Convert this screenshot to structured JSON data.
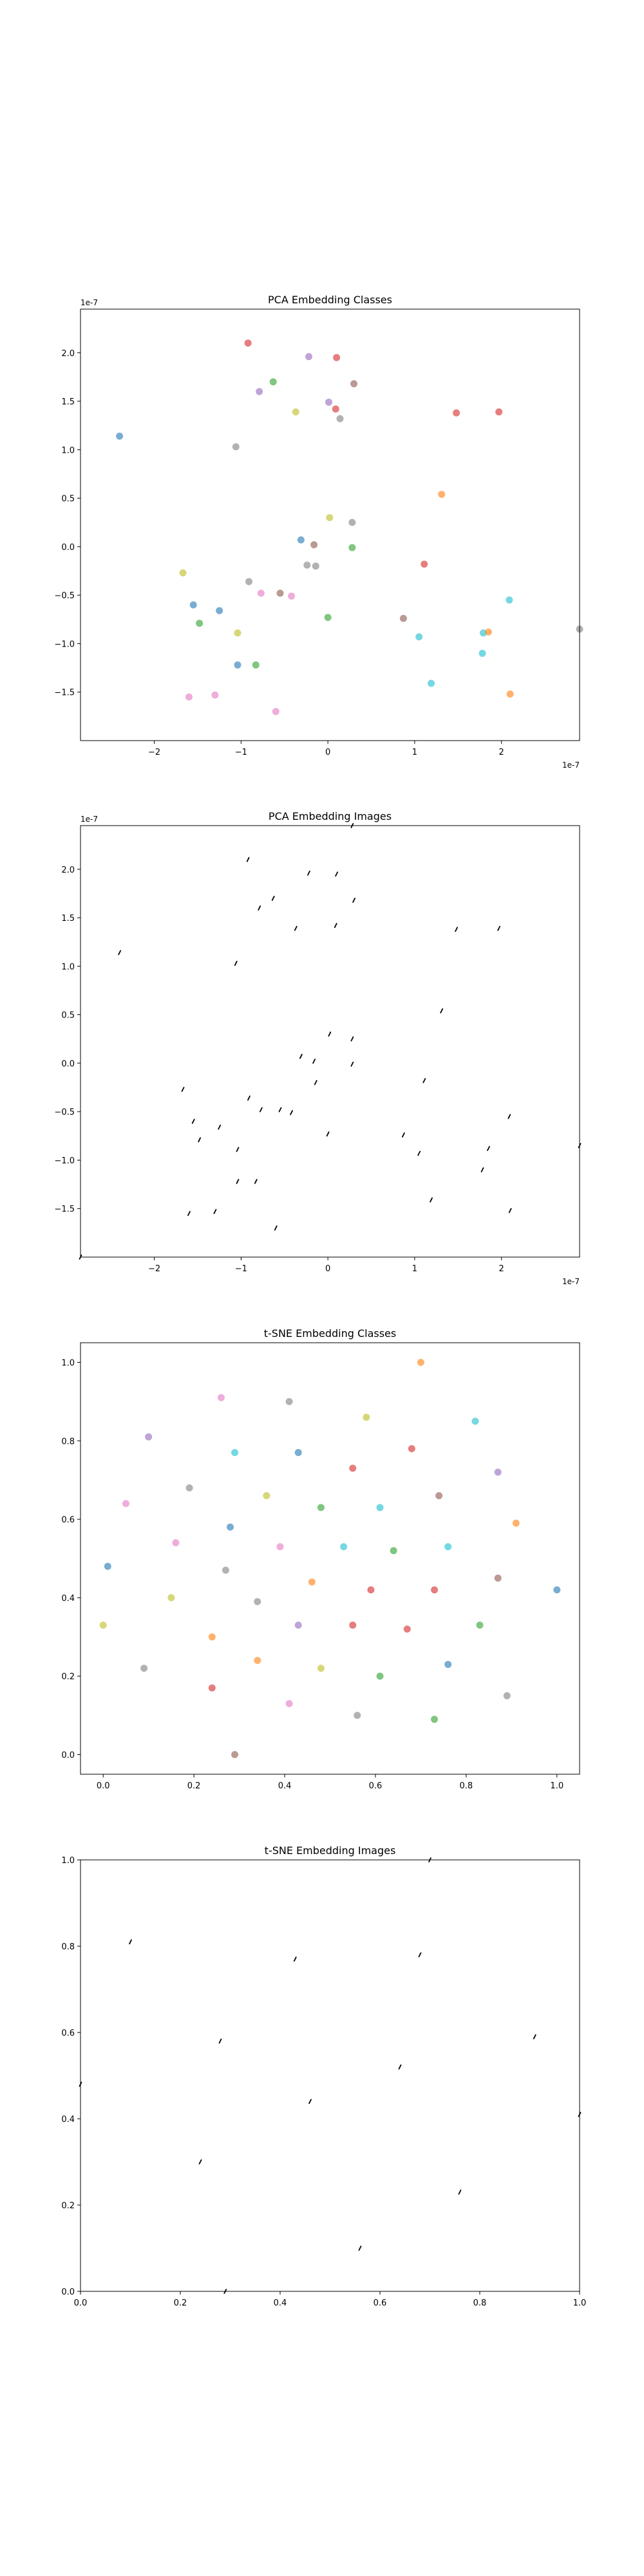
{
  "figure": {
    "background": "#ffffff"
  },
  "chart_data": [
    {
      "type": "scatter",
      "title": "PCA Embedding Classes",
      "xlabel": "",
      "ylabel": "",
      "x_scale_label": "1e-7",
      "y_scale_label": "1e-7",
      "xlim": [
        -2.85,
        2.9
      ],
      "ylim": [
        -2.0,
        2.45
      ],
      "xticks": [
        -2,
        -1,
        0,
        1,
        2
      ],
      "yticks": [
        -1.5,
        -1.0,
        -0.5,
        0.0,
        0.5,
        1.0,
        1.5,
        2.0
      ],
      "xtick_labels": [
        "−2",
        "−1",
        "0",
        "1",
        "2"
      ],
      "ytick_labels": [
        "−1.5",
        "−1.0",
        "−0.5",
        "0.0",
        "0.5",
        "1.0",
        "1.5",
        "2.0"
      ],
      "grid": false,
      "points": [
        {
          "x": -0.92,
          "y": 2.1,
          "color": "#d62728"
        },
        {
          "x": -0.22,
          "y": 1.96,
          "color": "#9467bd"
        },
        {
          "x": 0.1,
          "y": 1.95,
          "color": "#d62728"
        },
        {
          "x": -0.63,
          "y": 1.7,
          "color": "#2ca02c"
        },
        {
          "x": 0.3,
          "y": 1.68,
          "color": "#8c564b"
        },
        {
          "x": -0.79,
          "y": 1.6,
          "color": "#9467bd"
        },
        {
          "x": 0.01,
          "y": 1.49,
          "color": "#9467bd"
        },
        {
          "x": 0.09,
          "y": 1.42,
          "color": "#d62728"
        },
        {
          "x": -0.37,
          "y": 1.39,
          "color": "#bcbd22"
        },
        {
          "x": 0.14,
          "y": 1.32,
          "color": "#7f7f7f"
        },
        {
          "x": 1.48,
          "y": 1.38,
          "color": "#d62728"
        },
        {
          "x": 1.97,
          "y": 1.39,
          "color": "#d62728"
        },
        {
          "x": -2.4,
          "y": 1.14,
          "color": "#1f77b4"
        },
        {
          "x": -1.06,
          "y": 1.03,
          "color": "#7f7f7f"
        },
        {
          "x": 1.31,
          "y": 0.54,
          "color": "#ff7f0e"
        },
        {
          "x": 0.02,
          "y": 0.3,
          "color": "#bcbd22"
        },
        {
          "x": 0.28,
          "y": 0.25,
          "color": "#7f7f7f"
        },
        {
          "x": -0.31,
          "y": 0.07,
          "color": "#1f77b4"
        },
        {
          "x": -0.16,
          "y": 0.02,
          "color": "#8c564b"
        },
        {
          "x": 0.28,
          "y": -0.01,
          "color": "#2ca02c"
        },
        {
          "x": -0.24,
          "y": -0.19,
          "color": "#7f7f7f"
        },
        {
          "x": -0.14,
          "y": -0.2,
          "color": "#7f7f7f"
        },
        {
          "x": 1.11,
          "y": -0.18,
          "color": "#d62728"
        },
        {
          "x": -1.67,
          "y": -0.27,
          "color": "#bcbd22"
        },
        {
          "x": -0.91,
          "y": -0.36,
          "color": "#7f7f7f"
        },
        {
          "x": -0.77,
          "y": -0.48,
          "color": "#e377c2"
        },
        {
          "x": -0.55,
          "y": -0.48,
          "color": "#8c564b"
        },
        {
          "x": -0.42,
          "y": -0.51,
          "color": "#e377c2"
        },
        {
          "x": 2.09,
          "y": -0.55,
          "color": "#17becf"
        },
        {
          "x": -1.55,
          "y": -0.6,
          "color": "#1f77b4"
        },
        {
          "x": -1.25,
          "y": -0.66,
          "color": "#1f77b4"
        },
        {
          "x": 0.0,
          "y": -0.73,
          "color": "#2ca02c"
        },
        {
          "x": 0.87,
          "y": -0.74,
          "color": "#8c564b"
        },
        {
          "x": -1.48,
          "y": -0.79,
          "color": "#2ca02c"
        },
        {
          "x": 2.9,
          "y": -0.85,
          "color": "#7f7f7f"
        },
        {
          "x": -1.04,
          "y": -0.89,
          "color": "#bcbd22"
        },
        {
          "x": 1.79,
          "y": -0.89,
          "color": "#17becf"
        },
        {
          "x": 1.85,
          "y": -0.88,
          "color": "#ff7f0e"
        },
        {
          "x": 1.05,
          "y": -0.93,
          "color": "#17becf"
        },
        {
          "x": 1.78,
          "y": -1.1,
          "color": "#17becf"
        },
        {
          "x": -1.04,
          "y": -1.22,
          "color": "#1f77b4"
        },
        {
          "x": -0.83,
          "y": -1.22,
          "color": "#2ca02c"
        },
        {
          "x": 1.19,
          "y": -1.41,
          "color": "#17becf"
        },
        {
          "x": 2.1,
          "y": -1.52,
          "color": "#ff7f0e"
        },
        {
          "x": -1.3,
          "y": -1.53,
          "color": "#e377c2"
        },
        {
          "x": -1.6,
          "y": -1.55,
          "color": "#e377c2"
        },
        {
          "x": -0.6,
          "y": -1.7,
          "color": "#e377c2"
        }
      ]
    },
    {
      "type": "scatter",
      "title": "PCA Embedding Images",
      "xlabel": "",
      "ylabel": "",
      "x_scale_label": "1e-7",
      "y_scale_label": "1e-7",
      "xlim": [
        -2.85,
        2.9
      ],
      "ylim": [
        -2.0,
        2.45
      ],
      "xticks": [
        -2,
        -1,
        0,
        1,
        2
      ],
      "yticks": [
        -1.5,
        -1.0,
        -0.5,
        0.0,
        0.5,
        1.0,
        1.5,
        2.0
      ],
      "xtick_labels": [
        "−2",
        "−1",
        "0",
        "1",
        "2"
      ],
      "ytick_labels": [
        "−1.5",
        "−1.0",
        "−0.5",
        "0.0",
        "0.5",
        "1.0",
        "1.5",
        "2.0"
      ],
      "grid": false,
      "marker": "small image thumbnails",
      "points": [
        {
          "x": 0.28,
          "y": 2.45
        },
        {
          "x": -0.92,
          "y": 2.1
        },
        {
          "x": -0.22,
          "y": 1.96
        },
        {
          "x": 0.1,
          "y": 1.95
        },
        {
          "x": -0.79,
          "y": 1.6
        },
        {
          "x": -0.63,
          "y": 1.7
        },
        {
          "x": 0.3,
          "y": 1.68
        },
        {
          "x": -0.37,
          "y": 1.39
        },
        {
          "x": 0.09,
          "y": 1.42
        },
        {
          "x": 1.48,
          "y": 1.38
        },
        {
          "x": 1.97,
          "y": 1.39
        },
        {
          "x": -2.4,
          "y": 1.14
        },
        {
          "x": -1.06,
          "y": 1.03
        },
        {
          "x": 1.31,
          "y": 0.54
        },
        {
          "x": 0.02,
          "y": 0.3
        },
        {
          "x": 0.28,
          "y": 0.25
        },
        {
          "x": -0.31,
          "y": 0.07
        },
        {
          "x": -0.16,
          "y": 0.02
        },
        {
          "x": 0.28,
          "y": -0.01
        },
        {
          "x": -0.14,
          "y": -0.2
        },
        {
          "x": 1.11,
          "y": -0.18
        },
        {
          "x": -1.67,
          "y": -0.27
        },
        {
          "x": -0.91,
          "y": -0.36
        },
        {
          "x": -0.77,
          "y": -0.48
        },
        {
          "x": -0.55,
          "y": -0.48
        },
        {
          "x": -0.42,
          "y": -0.51
        },
        {
          "x": 2.09,
          "y": -0.55
        },
        {
          "x": -1.55,
          "y": -0.6
        },
        {
          "x": -1.25,
          "y": -0.66
        },
        {
          "x": 0.0,
          "y": -0.73
        },
        {
          "x": 0.87,
          "y": -0.74
        },
        {
          "x": -1.48,
          "y": -0.79
        },
        {
          "x": 2.9,
          "y": -0.85
        },
        {
          "x": -1.04,
          "y": -0.89
        },
        {
          "x": 1.85,
          "y": -0.88
        },
        {
          "x": 1.05,
          "y": -0.93
        },
        {
          "x": 1.78,
          "y": -1.1
        },
        {
          "x": -1.04,
          "y": -1.22
        },
        {
          "x": -0.83,
          "y": -1.22
        },
        {
          "x": 1.19,
          "y": -1.41
        },
        {
          "x": 2.1,
          "y": -1.52
        },
        {
          "x": -1.3,
          "y": -1.53
        },
        {
          "x": -1.6,
          "y": -1.55
        },
        {
          "x": -0.6,
          "y": -1.7
        },
        {
          "x": -2.85,
          "y": -2.0
        }
      ]
    },
    {
      "type": "scatter",
      "title": "t-SNE Embedding Classes",
      "xlabel": "",
      "ylabel": "",
      "xlim": [
        -0.05,
        1.05
      ],
      "ylim": [
        -0.05,
        1.05
      ],
      "xticks": [
        0.0,
        0.2,
        0.4,
        0.6,
        0.8,
        1.0
      ],
      "yticks": [
        0.0,
        0.2,
        0.4,
        0.6,
        0.8,
        1.0
      ],
      "xtick_labels": [
        "0.0",
        "0.2",
        "0.4",
        "0.6",
        "0.8",
        "1.0"
      ],
      "ytick_labels": [
        "0.0",
        "0.2",
        "0.4",
        "0.6",
        "0.8",
        "1.0"
      ],
      "grid": false,
      "points": [
        {
          "x": 0.7,
          "y": 1.0,
          "color": "#ff7f0e"
        },
        {
          "x": 0.26,
          "y": 0.91,
          "color": "#e377c2"
        },
        {
          "x": 0.41,
          "y": 0.9,
          "color": "#7f7f7f"
        },
        {
          "x": 0.58,
          "y": 0.86,
          "color": "#bcbd22"
        },
        {
          "x": 0.82,
          "y": 0.85,
          "color": "#17becf"
        },
        {
          "x": 0.1,
          "y": 0.81,
          "color": "#9467bd"
        },
        {
          "x": 0.68,
          "y": 0.78,
          "color": "#d62728"
        },
        {
          "x": 0.29,
          "y": 0.77,
          "color": "#17becf"
        },
        {
          "x": 0.43,
          "y": 0.77,
          "color": "#1f77b4"
        },
        {
          "x": 0.55,
          "y": 0.73,
          "color": "#d62728"
        },
        {
          "x": 0.87,
          "y": 0.72,
          "color": "#9467bd"
        },
        {
          "x": 0.19,
          "y": 0.68,
          "color": "#7f7f7f"
        },
        {
          "x": 0.36,
          "y": 0.66,
          "color": "#bcbd22"
        },
        {
          "x": 0.74,
          "y": 0.66,
          "color": "#8c564b"
        },
        {
          "x": 0.05,
          "y": 0.64,
          "color": "#e377c2"
        },
        {
          "x": 0.48,
          "y": 0.63,
          "color": "#2ca02c"
        },
        {
          "x": 0.61,
          "y": 0.63,
          "color": "#17becf"
        },
        {
          "x": 0.91,
          "y": 0.59,
          "color": "#ff7f0e"
        },
        {
          "x": 0.28,
          "y": 0.58,
          "color": "#1f77b4"
        },
        {
          "x": 0.16,
          "y": 0.54,
          "color": "#e377c2"
        },
        {
          "x": 0.39,
          "y": 0.53,
          "color": "#e377c2"
        },
        {
          "x": 0.53,
          "y": 0.53,
          "color": "#17becf"
        },
        {
          "x": 0.64,
          "y": 0.52,
          "color": "#2ca02c"
        },
        {
          "x": 0.76,
          "y": 0.53,
          "color": "#17becf"
        },
        {
          "x": 0.01,
          "y": 0.48,
          "color": "#1f77b4"
        },
        {
          "x": 0.27,
          "y": 0.47,
          "color": "#7f7f7f"
        },
        {
          "x": 0.87,
          "y": 0.45,
          "color": "#8c564b"
        },
        {
          "x": 0.46,
          "y": 0.44,
          "color": "#ff7f0e"
        },
        {
          "x": 0.59,
          "y": 0.42,
          "color": "#d62728"
        },
        {
          "x": 0.73,
          "y": 0.42,
          "color": "#d62728"
        },
        {
          "x": 1.0,
          "y": 0.42,
          "color": "#1f77b4"
        },
        {
          "x": 0.15,
          "y": 0.4,
          "color": "#bcbd22"
        },
        {
          "x": 0.34,
          "y": 0.39,
          "color": "#7f7f7f"
        },
        {
          "x": 0.0,
          "y": 0.33,
          "color": "#bcbd22"
        },
        {
          "x": 0.43,
          "y": 0.33,
          "color": "#9467bd"
        },
        {
          "x": 0.55,
          "y": 0.33,
          "color": "#d62728"
        },
        {
          "x": 0.67,
          "y": 0.32,
          "color": "#d62728"
        },
        {
          "x": 0.83,
          "y": 0.33,
          "color": "#2ca02c"
        },
        {
          "x": 0.24,
          "y": 0.3,
          "color": "#ff7f0e"
        },
        {
          "x": 0.34,
          "y": 0.24,
          "color": "#ff7f0e"
        },
        {
          "x": 0.76,
          "y": 0.23,
          "color": "#1f77b4"
        },
        {
          "x": 0.09,
          "y": 0.22,
          "color": "#7f7f7f"
        },
        {
          "x": 0.48,
          "y": 0.22,
          "color": "#bcbd22"
        },
        {
          "x": 0.61,
          "y": 0.2,
          "color": "#2ca02c"
        },
        {
          "x": 0.24,
          "y": 0.17,
          "color": "#d62728"
        },
        {
          "x": 0.89,
          "y": 0.15,
          "color": "#7f7f7f"
        },
        {
          "x": 0.41,
          "y": 0.13,
          "color": "#e377c2"
        },
        {
          "x": 0.56,
          "y": 0.1,
          "color": "#7f7f7f"
        },
        {
          "x": 0.73,
          "y": 0.09,
          "color": "#2ca02c"
        },
        {
          "x": 0.29,
          "y": 0.0,
          "color": "#8c564b"
        }
      ]
    },
    {
      "type": "scatter",
      "title": "t-SNE Embedding Images",
      "xlabel": "",
      "ylabel": "",
      "xlim": [
        0.0,
        1.0
      ],
      "ylim": [
        0.0,
        1.0
      ],
      "xticks": [
        0.0,
        0.2,
        0.4,
        0.6,
        0.8,
        1.0
      ],
      "yticks": [
        0.0,
        0.2,
        0.4,
        0.6,
        0.8,
        1.0
      ],
      "xtick_labels": [
        "0.0",
        "0.2",
        "0.4",
        "0.6",
        "0.8",
        "1.0"
      ],
      "ytick_labels": [
        "0.0",
        "0.2",
        "0.4",
        "0.6",
        "0.8",
        "1.0"
      ],
      "grid": false,
      "marker": "small image thumbnails",
      "points": [
        {
          "x": 0.7,
          "y": 1.0
        },
        {
          "x": 0.1,
          "y": 0.81
        },
        {
          "x": 0.43,
          "y": 0.77
        },
        {
          "x": 0.68,
          "y": 0.78
        },
        {
          "x": 0.28,
          "y": 0.58
        },
        {
          "x": 0.91,
          "y": 0.59
        },
        {
          "x": 0.64,
          "y": 0.52
        },
        {
          "x": 0.0,
          "y": 0.48
        },
        {
          "x": 0.46,
          "y": 0.44
        },
        {
          "x": 1.0,
          "y": 0.41
        },
        {
          "x": 0.24,
          "y": 0.3
        },
        {
          "x": 0.76,
          "y": 0.23
        },
        {
          "x": 0.56,
          "y": 0.1
        },
        {
          "x": 0.29,
          "y": 0.0
        }
      ]
    }
  ]
}
